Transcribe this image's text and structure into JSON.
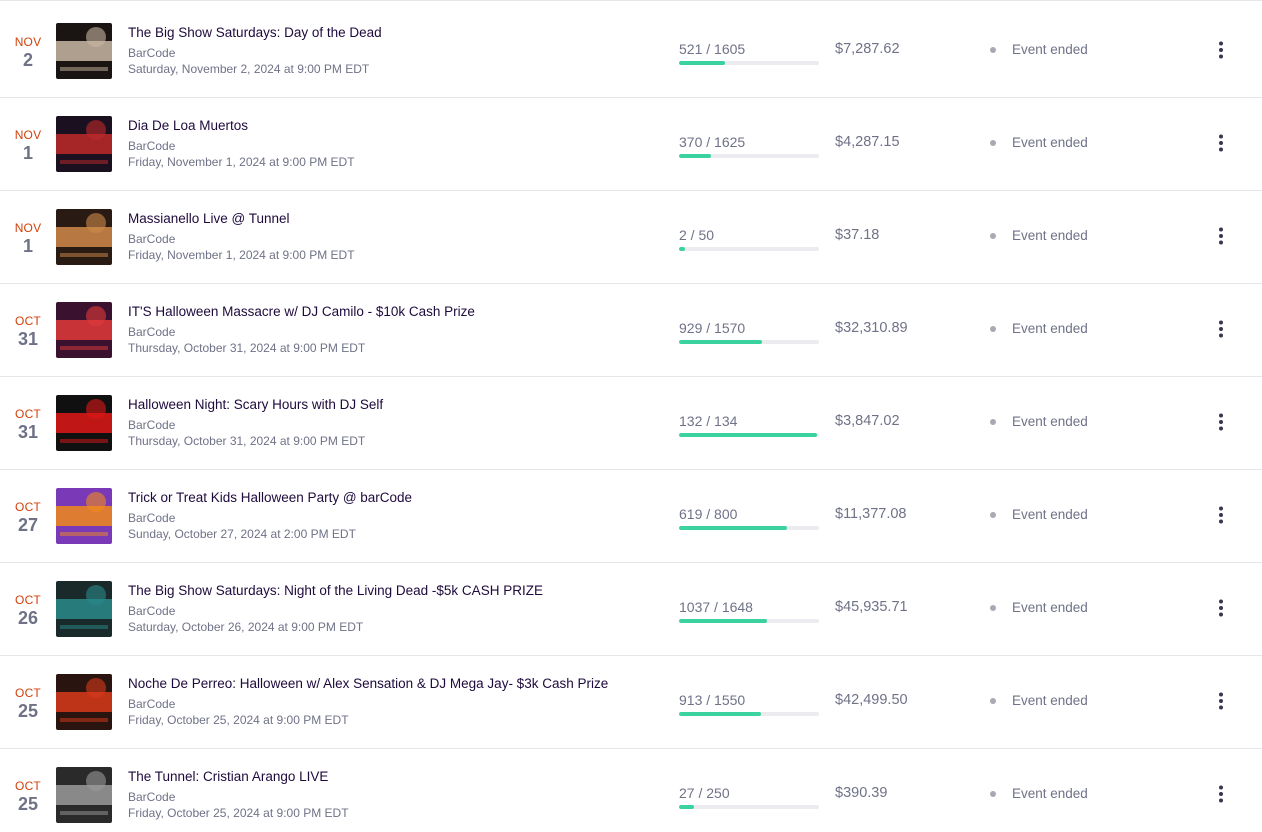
{
  "events": [
    {
      "month": "NOV",
      "day": "2",
      "title": "The Big Show Saturdays: Day of the Dead",
      "venue": "BarCode",
      "datetime": "Saturday, November 2, 2024 at 9:00 PM EDT",
      "sold": "521 / 1605",
      "sold_fraction": 0.325,
      "gross": "$7,287.62",
      "status": "Event ended",
      "thumb_colors": [
        "#1a1412",
        "#c9b7a4"
      ]
    },
    {
      "month": "NOV",
      "day": "1",
      "title": "Dia De Loa Muertos",
      "venue": "BarCode",
      "datetime": "Friday, November 1, 2024 at 9:00 PM EDT",
      "sold": "370 / 1625",
      "sold_fraction": 0.228,
      "gross": "$4,287.15",
      "status": "Event ended",
      "thumb_colors": [
        "#1a1020",
        "#c02a2a"
      ]
    },
    {
      "month": "NOV",
      "day": "1",
      "title": "Massianello Live @ Tunnel",
      "venue": "BarCode",
      "datetime": "Friday, November 1, 2024 at 9:00 PM EDT",
      "sold": "2 / 50",
      "sold_fraction": 0.04,
      "gross": "$37.18",
      "status": "Event ended",
      "thumb_colors": [
        "#2a1a14",
        "#d08a4a"
      ]
    },
    {
      "month": "OCT",
      "day": "31",
      "title": "IT'S Halloween Massacre w/ DJ Camilo - $10k Cash Prize",
      "venue": "BarCode",
      "datetime": "Thursday, October 31, 2024 at 9:00 PM EDT",
      "sold": "929 / 1570",
      "sold_fraction": 0.592,
      "gross": "$32,310.89",
      "status": "Event ended",
      "thumb_colors": [
        "#3a1230",
        "#e23a3a"
      ]
    },
    {
      "month": "OCT",
      "day": "31",
      "title": "Halloween Night: Scary Hours with DJ Self",
      "venue": "BarCode",
      "datetime": "Thursday, October 31, 2024 at 9:00 PM EDT",
      "sold": "132 / 134",
      "sold_fraction": 0.985,
      "gross": "$3,847.02",
      "status": "Event ended",
      "thumb_colors": [
        "#101010",
        "#e01818"
      ]
    },
    {
      "month": "OCT",
      "day": "27",
      "title": "Trick or Treat Kids Halloween Party @ barCode",
      "venue": "BarCode",
      "datetime": "Sunday, October 27, 2024 at 2:00 PM EDT",
      "sold": "619 / 800",
      "sold_fraction": 0.774,
      "gross": "$11,377.08",
      "status": "Event ended",
      "thumb_colors": [
        "#7a3ab8",
        "#f08a1a"
      ]
    },
    {
      "month": "OCT",
      "day": "26",
      "title": "The Big Show Saturdays: Night of the Living Dead -$5k CASH PRIZE",
      "venue": "BarCode",
      "datetime": "Saturday, October 26, 2024 at 9:00 PM EDT",
      "sold": "1037 / 1648",
      "sold_fraction": 0.629,
      "gross": "$45,935.71",
      "status": "Event ended",
      "thumb_colors": [
        "#1a2a2a",
        "#2a8a8a"
      ]
    },
    {
      "month": "OCT",
      "day": "25",
      "title": "Noche De Perreo: Halloween w/ Alex Sensation & DJ Mega Jay- $3k Cash Prize",
      "venue": "BarCode",
      "datetime": "Friday, October 25, 2024 at 9:00 PM EDT",
      "sold": "913 / 1550",
      "sold_fraction": 0.589,
      "gross": "$42,499.50",
      "status": "Event ended",
      "thumb_colors": [
        "#2a1410",
        "#d83a1a"
      ]
    },
    {
      "month": "OCT",
      "day": "25",
      "title": "The Tunnel: Cristian Arango LIVE",
      "venue": "BarCode",
      "datetime": "Friday, October 25, 2024 at 9:00 PM EDT",
      "sold": "27 / 250",
      "sold_fraction": 0.108,
      "gross": "$390.39",
      "status": "Event ended",
      "thumb_colors": [
        "#2a2a2a",
        "#9a9a9a"
      ]
    }
  ],
  "colors": {
    "accent_month": "#d1410c",
    "progress_fill": "#3ad29f",
    "progress_track": "#ececf0",
    "status_dot": "#a9a8b3"
  },
  "icons": {
    "row_menu": "more-vertical-icon",
    "status": "status-dot-icon"
  }
}
